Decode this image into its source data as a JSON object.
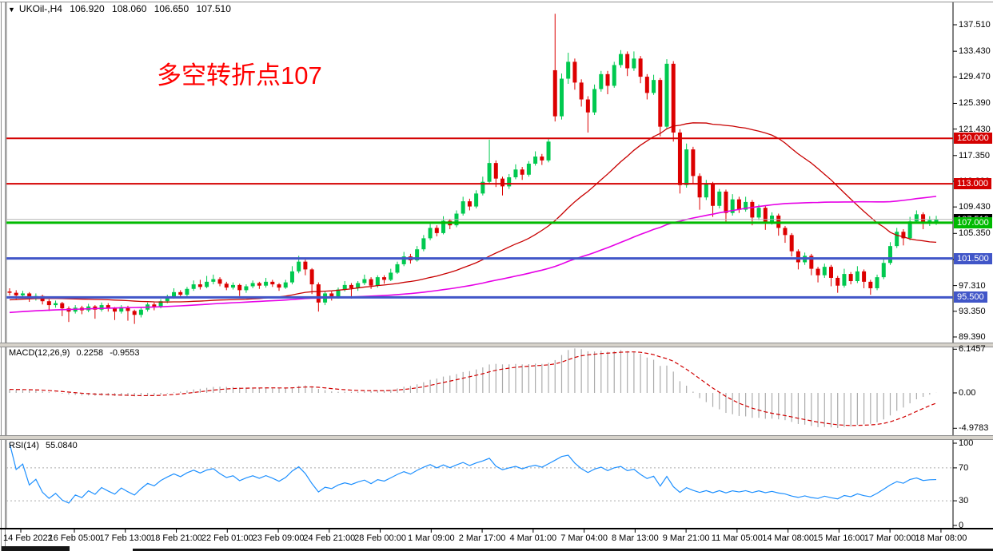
{
  "window": {
    "top_title": {
      "collapse_icon": "▼",
      "symbol": "UKOil-,H4",
      "open": "106.920",
      "high": "108.060",
      "low": "106.650",
      "close": "107.510"
    }
  },
  "annotation": {
    "text": "多空转折点107",
    "color": "#FF0000"
  },
  "colors": {
    "bull": "#00C94F",
    "bear": "#DC0000",
    "ma_fast": "#C80000",
    "ma_slow": "#E600E6",
    "macd_hist": "#ABABAB",
    "macd_signal": "#D00000",
    "rsi_line": "#1E90FF",
    "level_red": "#D40000",
    "level_green": "#00BA00",
    "level_blue": "#4156C8",
    "current_price_line": "#B4B4B4",
    "current_tag_bg": "#000000"
  },
  "main_panel": {
    "axis_ticks": [
      "137.510",
      "133.430",
      "129.470",
      "125.390",
      "121.430",
      "117.350",
      "113.390",
      "109.430",
      "105.350",
      "101.330",
      "97.310",
      "93.350",
      "89.390"
    ],
    "levels": [
      {
        "label": "120.000",
        "value": 120.0,
        "color_key": "level_red",
        "width": 2
      },
      {
        "label": "113.000",
        "value": 113.0,
        "color_key": "level_red",
        "width": 2
      },
      {
        "label": "107.000",
        "value": 107.0,
        "color_key": "level_green",
        "width": 3
      },
      {
        "label": "101.500",
        "value": 101.5,
        "color_key": "level_blue",
        "width": 3
      },
      {
        "label": "95.500",
        "value": 95.5,
        "color_key": "level_blue",
        "width": 3
      }
    ],
    "current_price": {
      "label": "107.510",
      "value": 107.51
    }
  },
  "macd_panel": {
    "label": "MACD(12,26,9)",
    "main_value": "0.2258",
    "signal_value": "-0.9553",
    "axis_ticks": [
      "6.1457",
      "0.00",
      "-4.9783"
    ],
    "params": {
      "fast": 12,
      "slow": 26,
      "signal": 9
    },
    "range": {
      "max": 6.1457,
      "min": -4.9783
    }
  },
  "rsi_panel": {
    "label": "RSI(14)",
    "value": "55.0840",
    "axis_ticks": [
      "100",
      "70",
      "30",
      "0"
    ],
    "levels": [
      70,
      30
    ],
    "period": 14,
    "range": {
      "max": 100,
      "min": 0
    }
  },
  "time_axis": {
    "labels": [
      "14 Feb 2022",
      "16 Feb 05:00",
      "17 Feb 13:00",
      "18 Feb 21:00",
      "22 Feb 01:00",
      "23 Feb 09:00",
      "24 Feb 21:00",
      "28 Feb 00:00",
      "1 Mar 09:00",
      "2 Mar 17:00",
      "4 Mar 01:00",
      "7 Mar 04:00",
      "8 Mar 13:00",
      "9 Mar 21:00",
      "11 Mar 05:00",
      "14 Mar 08:00",
      "15 Mar 16:00",
      "17 Mar 00:00",
      "18 Mar 08:00"
    ]
  },
  "chart_data": {
    "type": "candlestick",
    "symbol": "UKOil-",
    "timeframe": "H4",
    "price_range_visible": [
      88.4,
      139.6
    ],
    "ma_periods": {
      "fast_red": 34,
      "slow_magenta": 89
    },
    "candles": [
      [
        96.4,
        96.9,
        95.8,
        96.2
      ],
      [
        96.2,
        96.6,
        95.1,
        95.8
      ],
      [
        95.8,
        96.5,
        95.5,
        96.1
      ],
      [
        96.1,
        96.3,
        94.8,
        95.4
      ],
      [
        95.4,
        96.1,
        95.0,
        95.7
      ],
      [
        95.7,
        95.9,
        94.4,
        94.9
      ],
      [
        94.9,
        95.2,
        93.4,
        94.3
      ],
      [
        94.3,
        95.0,
        93.9,
        94.6
      ],
      [
        94.6,
        94.8,
        92.6,
        93.8
      ],
      [
        93.8,
        94.1,
        91.7,
        93.3
      ],
      [
        93.3,
        94.3,
        93.0,
        93.9
      ],
      [
        93.9,
        94.2,
        92.9,
        93.5
      ],
      [
        93.5,
        94.5,
        93.2,
        94.1
      ],
      [
        94.1,
        94.3,
        92.2,
        93.6
      ],
      [
        93.6,
        94.7,
        93.3,
        94.3
      ],
      [
        94.3,
        94.6,
        93.3,
        93.8
      ],
      [
        93.8,
        94.0,
        92.0,
        93.3
      ],
      [
        93.3,
        94.3,
        93.0,
        94.0
      ],
      [
        94.0,
        94.2,
        91.9,
        93.4
      ],
      [
        93.4,
        93.6,
        91.4,
        92.8
      ],
      [
        92.8,
        93.9,
        92.4,
        93.6
      ],
      [
        93.6,
        94.7,
        93.3,
        94.4
      ],
      [
        94.4,
        94.7,
        93.5,
        94.0
      ],
      [
        94.0,
        95.2,
        93.8,
        94.9
      ],
      [
        94.9,
        95.9,
        94.6,
        95.6
      ],
      [
        95.6,
        96.9,
        95.3,
        96.3
      ],
      [
        96.3,
        96.6,
        95.4,
        95.9
      ],
      [
        95.9,
        97.1,
        95.6,
        96.8
      ],
      [
        96.8,
        98.1,
        96.5,
        97.5
      ],
      [
        97.5,
        98.2,
        96.7,
        97.1
      ],
      [
        97.1,
        98.8,
        96.9,
        97.9
      ],
      [
        97.9,
        99.0,
        97.5,
        98.3
      ],
      [
        98.3,
        98.6,
        97.2,
        97.6
      ],
      [
        97.6,
        97.9,
        96.6,
        97.0
      ],
      [
        97.0,
        97.8,
        96.7,
        97.4
      ],
      [
        97.4,
        97.6,
        95.7,
        96.6
      ],
      [
        96.6,
        97.5,
        96.2,
        97.2
      ],
      [
        97.2,
        98.1,
        96.9,
        97.7
      ],
      [
        97.7,
        97.9,
        96.8,
        97.3
      ],
      [
        97.3,
        98.5,
        97.0,
        97.9
      ],
      [
        97.9,
        98.2,
        97.1,
        97.5
      ],
      [
        97.5,
        97.7,
        96.5,
        97.0
      ],
      [
        97.0,
        98.2,
        96.8,
        97.8
      ],
      [
        97.8,
        100.3,
        97.5,
        99.5
      ],
      [
        99.5,
        101.9,
        99.2,
        101.0
      ],
      [
        101.0,
        101.3,
        98.9,
        99.8
      ],
      [
        99.8,
        100.0,
        96.0,
        97.5
      ],
      [
        97.5,
        97.8,
        93.3,
        94.7
      ],
      [
        94.7,
        96.5,
        94.3,
        96.1
      ],
      [
        96.1,
        96.4,
        95.0,
        95.6
      ],
      [
        95.6,
        97.0,
        95.3,
        96.7
      ],
      [
        96.7,
        98.0,
        96.4,
        97.4
      ],
      [
        97.4,
        97.7,
        95.3,
        96.9
      ],
      [
        96.9,
        98.0,
        96.5,
        97.7
      ],
      [
        97.7,
        99.0,
        97.4,
        98.3
      ],
      [
        98.3,
        98.6,
        96.8,
        97.3
      ],
      [
        97.3,
        98.9,
        97.0,
        98.6
      ],
      [
        98.6,
        98.9,
        97.6,
        98.2
      ],
      [
        98.2,
        99.9,
        98.0,
        99.3
      ],
      [
        99.3,
        101.0,
        99.1,
        100.6
      ],
      [
        100.6,
        102.5,
        100.3,
        101.8
      ],
      [
        101.8,
        102.2,
        100.7,
        101.2
      ],
      [
        101.2,
        103.4,
        101.0,
        102.9
      ],
      [
        102.9,
        105.1,
        102.6,
        104.6
      ],
      [
        104.6,
        106.8,
        104.3,
        106.2
      ],
      [
        106.2,
        106.6,
        104.9,
        105.4
      ],
      [
        105.4,
        108.0,
        105.2,
        107.3
      ],
      [
        107.3,
        107.6,
        106.0,
        106.6
      ],
      [
        106.6,
        108.9,
        106.3,
        108.4
      ],
      [
        108.4,
        111.0,
        108.1,
        110.3
      ],
      [
        110.3,
        110.7,
        108.9,
        109.5
      ],
      [
        109.5,
        112.0,
        109.2,
        111.5
      ],
      [
        111.5,
        114.1,
        111.2,
        113.3
      ],
      [
        113.3,
        119.8,
        112.9,
        116.2
      ],
      [
        116.2,
        116.6,
        112.5,
        113.8
      ],
      [
        113.8,
        114.1,
        111.2,
        112.6
      ],
      [
        112.6,
        114.5,
        112.2,
        114.0
      ],
      [
        114.0,
        116.0,
        113.7,
        115.2
      ],
      [
        115.2,
        115.6,
        113.6,
        114.4
      ],
      [
        114.4,
        116.5,
        114.1,
        116.1
      ],
      [
        116.1,
        118.0,
        115.8,
        117.2
      ],
      [
        117.2,
        117.6,
        115.9,
        116.6
      ],
      [
        116.6,
        120.1,
        116.3,
        119.5
      ],
      [
        130.5,
        139.2,
        122.6,
        123.4
      ],
      [
        123.4,
        130.0,
        122.9,
        129.2
      ],
      [
        129.2,
        133.2,
        128.4,
        131.8
      ],
      [
        131.8,
        132.3,
        127.5,
        128.6
      ],
      [
        128.6,
        129.1,
        124.9,
        126.0
      ],
      [
        126.0,
        126.5,
        120.9,
        124.0
      ],
      [
        124.0,
        128.3,
        123.6,
        127.6
      ],
      [
        127.6,
        130.4,
        127.2,
        129.9
      ],
      [
        129.9,
        130.4,
        126.8,
        128.1
      ],
      [
        128.1,
        131.8,
        127.8,
        131.3
      ],
      [
        131.3,
        133.6,
        130.9,
        133.0
      ],
      [
        133.0,
        133.4,
        129.6,
        130.8
      ],
      [
        130.8,
        133.4,
        130.4,
        132.3
      ],
      [
        132.3,
        132.7,
        128.5,
        129.5
      ],
      [
        129.5,
        129.9,
        126.0,
        127.0
      ],
      [
        127.0,
        129.8,
        126.7,
        129.0
      ],
      [
        129.0,
        129.3,
        120.3,
        121.8
      ],
      [
        121.8,
        132.2,
        121.4,
        131.5
      ],
      [
        131.5,
        131.9,
        119.5,
        120.9
      ],
      [
        120.9,
        121.4,
        111.5,
        112.8
      ],
      [
        112.8,
        119.2,
        112.4,
        118.3
      ],
      [
        118.3,
        118.7,
        112.9,
        114.2
      ],
      [
        114.2,
        114.6,
        109.0,
        110.9
      ],
      [
        110.9,
        113.6,
        110.5,
        112.9
      ],
      [
        112.9,
        113.3,
        107.9,
        109.6
      ],
      [
        109.6,
        112.2,
        109.2,
        111.8
      ],
      [
        111.8,
        112.1,
        106.9,
        108.5
      ],
      [
        108.5,
        111.4,
        108.1,
        110.6
      ],
      [
        110.6,
        111.0,
        108.5,
        109.0
      ],
      [
        109.0,
        111.0,
        108.7,
        110.2
      ],
      [
        110.2,
        110.5,
        106.6,
        107.8
      ],
      [
        107.8,
        109.8,
        107.4,
        109.3
      ],
      [
        109.3,
        109.6,
        105.9,
        107.0
      ],
      [
        107.0,
        108.6,
        106.7,
        108.1
      ],
      [
        108.1,
        108.4,
        105.0,
        106.2
      ],
      [
        106.2,
        106.5,
        103.9,
        105.1
      ],
      [
        105.1,
        105.4,
        101.8,
        102.6
      ],
      [
        102.6,
        102.9,
        99.8,
        100.9
      ],
      [
        100.9,
        102.4,
        100.5,
        101.9
      ],
      [
        101.9,
        102.2,
        98.9,
        99.9
      ],
      [
        99.9,
        100.2,
        97.8,
        98.9
      ],
      [
        98.9,
        100.7,
        98.5,
        100.2
      ],
      [
        100.2,
        100.5,
        97.2,
        98.5
      ],
      [
        98.5,
        98.8,
        96.2,
        97.3
      ],
      [
        97.3,
        99.9,
        97.0,
        99.1
      ],
      [
        99.1,
        99.4,
        97.5,
        98.0
      ],
      [
        98.0,
        100.3,
        97.7,
        99.5
      ],
      [
        99.5,
        99.8,
        96.9,
        97.9
      ],
      [
        97.9,
        98.2,
        95.9,
        96.9
      ],
      [
        96.9,
        99.0,
        96.6,
        98.6
      ],
      [
        98.6,
        101.5,
        98.3,
        100.8
      ],
      [
        100.8,
        104.0,
        100.5,
        103.4
      ],
      [
        103.4,
        106.2,
        103.1,
        105.6
      ],
      [
        105.6,
        106.0,
        103.5,
        104.6
      ],
      [
        104.6,
        107.9,
        104.3,
        107.2
      ],
      [
        107.2,
        108.9,
        106.9,
        108.3
      ],
      [
        108.3,
        108.6,
        106.0,
        106.9
      ],
      [
        106.9,
        108.0,
        106.5,
        107.4
      ],
      [
        106.92,
        108.06,
        106.65,
        107.51
      ]
    ]
  }
}
